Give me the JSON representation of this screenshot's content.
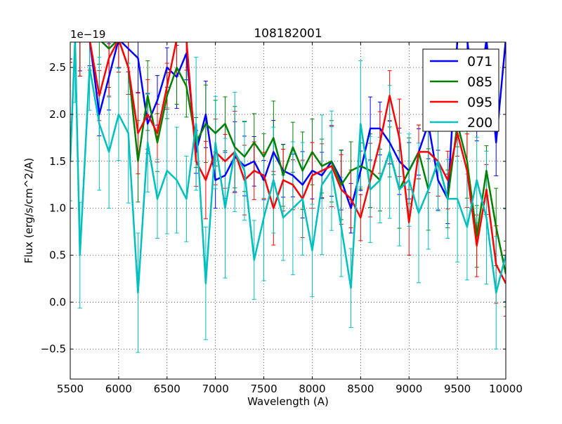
{
  "chart_data": {
    "type": "line",
    "title": "108182001",
    "xlabel": "Wavelength (A)",
    "ylabel": "Flux (erg/s/cm^2/A)",
    "y_offset_label": "1e−19",
    "xlim": [
      5500,
      10000
    ],
    "ylim": [
      -0.82,
      2.77
    ],
    "xticks": [
      5500,
      6000,
      6500,
      7000,
      7500,
      8000,
      8500,
      9000,
      9500,
      10000
    ],
    "xtick_labels": [
      "5500",
      "6000",
      "6500",
      "7000",
      "7500",
      "8000",
      "8500",
      "9000",
      "9500",
      "10000"
    ],
    "yticks": [
      -0.5,
      0.0,
      0.5,
      1.0,
      1.5,
      2.0,
      2.5
    ],
    "ytick_labels": [
      "−0.5",
      "0.0",
      "0.5",
      "1.0",
      "1.5",
      "2.0",
      "2.5"
    ],
    "grid": true,
    "legend_position": "top-right",
    "series": [
      {
        "name": "071",
        "color": "#0000ff",
        "err": 0.3,
        "x": [
          5500,
          5600,
          5700,
          5800,
          5900,
          6000,
          6100,
          6200,
          6300,
          6400,
          6500,
          6600,
          6700,
          6800,
          6900,
          7000,
          7100,
          7200,
          7300,
          7400,
          7500,
          7600,
          7700,
          7800,
          7900,
          8000,
          8100,
          8200,
          8300,
          8400,
          8500,
          8600,
          8700,
          8800,
          8900,
          9000,
          9100,
          9200,
          9300,
          9400,
          9500,
          9600,
          9700,
          9800,
          9900,
          10000
        ],
        "y": [
          2.8,
          2.8,
          2.8,
          2.0,
          2.4,
          2.8,
          2.7,
          2.6,
          1.9,
          2.15,
          2.5,
          2.4,
          2.65,
          1.6,
          2.0,
          1.3,
          1.35,
          1.55,
          1.45,
          1.5,
          1.3,
          1.6,
          1.4,
          1.35,
          1.25,
          1.4,
          1.35,
          1.5,
          1.3,
          1.0,
          1.4,
          1.85,
          1.85,
          1.7,
          1.5,
          1.4,
          1.6,
          1.9,
          1.3,
          1.1,
          2.8,
          2.8,
          2.0,
          2.8,
          1.7,
          2.8
        ]
      },
      {
        "name": "085",
        "color": "#008000",
        "err": 0.35,
        "x": [
          5500,
          5600,
          5700,
          5800,
          5900,
          6000,
          6100,
          6200,
          6300,
          6400,
          6500,
          6600,
          6700,
          6800,
          6900,
          7000,
          7100,
          7200,
          7300,
          7400,
          7500,
          7600,
          7700,
          7800,
          7900,
          8000,
          8100,
          8200,
          8300,
          8400,
          8500,
          8600,
          8700,
          8800,
          8900,
          9000,
          9100,
          9200,
          9300,
          9400,
          9500,
          9600,
          9700,
          9800,
          9900,
          10000
        ],
        "y": [
          2.8,
          2.8,
          2.8,
          2.8,
          2.7,
          2.8,
          2.5,
          1.5,
          2.2,
          1.7,
          2.2,
          2.5,
          2.3,
          1.7,
          1.9,
          1.8,
          1.9,
          1.65,
          1.55,
          1.7,
          1.55,
          1.75,
          1.35,
          1.65,
          1.4,
          1.6,
          1.45,
          1.5,
          1.25,
          1.4,
          1.45,
          1.4,
          1.3,
          1.6,
          1.2,
          1.4,
          1.6,
          1.2,
          1.5,
          1.1,
          1.9,
          1.5,
          0.7,
          1.4,
          0.8,
          0.3
        ]
      },
      {
        "name": "095",
        "color": "#ff0000",
        "err": 0.35,
        "x": [
          5500,
          5600,
          5700,
          5800,
          5900,
          6000,
          6100,
          6200,
          6300,
          6400,
          6500,
          6600,
          6700,
          6800,
          6900,
          7000,
          7100,
          7200,
          7300,
          7400,
          7500,
          7600,
          7700,
          7800,
          7900,
          8000,
          8100,
          8200,
          8300,
          8400,
          8500,
          8600,
          8700,
          8800,
          8900,
          9000,
          9100,
          9200,
          9300,
          9400,
          9500,
          9600,
          9700,
          9800,
          9900,
          10000
        ],
        "y": [
          2.8,
          2.8,
          2.8,
          2.2,
          2.6,
          2.8,
          2.5,
          1.8,
          2.0,
          1.8,
          2.3,
          2.8,
          2.8,
          1.5,
          1.3,
          1.6,
          1.5,
          1.6,
          1.3,
          1.4,
          1.35,
          1.0,
          1.3,
          1.25,
          1.1,
          1.35,
          1.4,
          1.45,
          1.2,
          1.1,
          0.9,
          1.3,
          1.7,
          2.2,
          1.75,
          0.85,
          1.6,
          1.6,
          1.5,
          1.3,
          1.8,
          1.4,
          0.6,
          1.2,
          0.4,
          0.2
        ]
      },
      {
        "name": "200",
        "color": "#00bfbf",
        "err": 0.6,
        "x": [
          5500,
          5550,
          5600,
          5700,
          5800,
          5900,
          6000,
          6100,
          6200,
          6300,
          6400,
          6500,
          6600,
          6700,
          6800,
          6900,
          7000,
          7100,
          7200,
          7300,
          7400,
          7500,
          7600,
          7700,
          7800,
          7900,
          8000,
          8100,
          8200,
          8300,
          8400,
          8500,
          8600,
          8700,
          8800,
          8900,
          9000,
          9100,
          9200,
          9300,
          9400,
          9500,
          9600,
          9700,
          9800,
          9900,
          10000
        ],
        "y": [
          1.5,
          2.8,
          0.5,
          2.5,
          1.9,
          1.6,
          2.0,
          1.8,
          0.1,
          1.7,
          1.1,
          1.4,
          1.3,
          1.1,
          1.9,
          0.2,
          1.7,
          1.0,
          1.6,
          1.4,
          0.45,
          0.9,
          1.3,
          0.9,
          1.0,
          1.1,
          0.55,
          1.25,
          1.4,
          0.8,
          0.15,
          1.9,
          1.2,
          1.3,
          1.6,
          1.2,
          1.3,
          0.95,
          1.2,
          1.5,
          1.1,
          1.1,
          0.8,
          1.3,
          0.9,
          0.1,
          0.5
        ]
      }
    ]
  }
}
